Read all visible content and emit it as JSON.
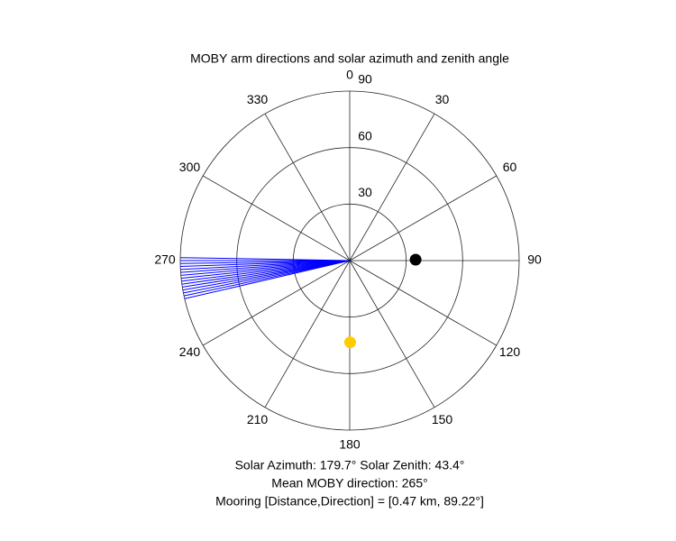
{
  "chart_data": {
    "type": "polar",
    "title": "MOBY arm directions and solar azimuth and zenith angle",
    "theta_ticks": [
      0,
      30,
      60,
      90,
      120,
      150,
      180,
      210,
      240,
      270,
      300,
      330
    ],
    "rlim": [
      0,
      90
    ],
    "rticks": [
      30,
      60,
      90
    ],
    "arms": {
      "color": "#0000ff",
      "theta": [
        257,
        258,
        259,
        260,
        261,
        262,
        263,
        264,
        265,
        266,
        267,
        268,
        269,
        270,
        271
      ],
      "r": [
        90,
        90,
        90,
        90,
        90,
        90,
        90,
        90,
        90,
        90,
        90,
        90,
        90,
        90,
        90
      ]
    },
    "points": [
      {
        "color": "#000000",
        "theta": 89.22,
        "r": 35
      },
      {
        "color": "#ffcc00",
        "theta": 179.7,
        "r": 43.4
      }
    ],
    "annotations": [
      "Solar Azimuth: 179.7°   Solar Zenith: 43.4°",
      "Mean MOBY direction: 265°",
      "Mooring [Distance,Direction] = [0.47 km, 89.22°]"
    ]
  }
}
